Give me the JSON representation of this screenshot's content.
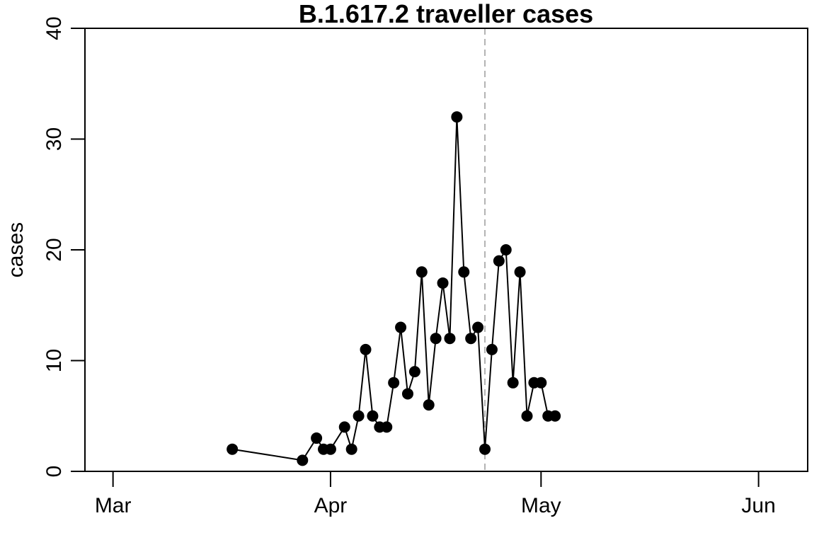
{
  "chart_data": {
    "type": "line",
    "title": "B.1.617.2 traveller cases",
    "xlabel": "",
    "ylabel": "cases",
    "x_type": "date",
    "xlim": [
      "2021-02-25",
      "2021-06-08"
    ],
    "ylim": [
      0,
      40
    ],
    "y_ticks": [
      0,
      10,
      20,
      30,
      40
    ],
    "x_ticks": [
      {
        "date": "2021-03-01",
        "label": "Mar"
      },
      {
        "date": "2021-04-01",
        "label": "Apr"
      },
      {
        "date": "2021-05-01",
        "label": "May"
      },
      {
        "date": "2021-06-01",
        "label": "Jun"
      }
    ],
    "grid": false,
    "legend": "none",
    "reference_line": {
      "date": "2021-04-23",
      "style": "dashed",
      "color": "#b3b3b3"
    },
    "colors": {
      "line": "#000000",
      "points": "#000000",
      "axes": "#000000"
    },
    "series": [
      {
        "x": [
          "2021-03-18",
          "2021-03-28",
          "2021-03-30",
          "2021-03-31",
          "2021-04-01",
          "2021-04-03",
          "2021-04-04",
          "2021-04-05",
          "2021-04-06",
          "2021-04-07",
          "2021-04-08",
          "2021-04-09",
          "2021-04-10",
          "2021-04-11",
          "2021-04-12",
          "2021-04-13",
          "2021-04-14",
          "2021-04-15",
          "2021-04-16",
          "2021-04-17",
          "2021-04-18",
          "2021-04-19",
          "2021-04-20",
          "2021-04-21",
          "2021-04-22",
          "2021-04-23",
          "2021-04-24",
          "2021-04-25",
          "2021-04-26",
          "2021-04-27",
          "2021-04-28",
          "2021-04-29",
          "2021-04-30",
          "2021-05-01",
          "2021-05-02",
          "2021-05-03"
        ],
        "values": [
          2,
          1,
          3,
          2,
          2,
          4,
          2,
          5,
          11,
          5,
          4,
          4,
          8,
          13,
          7,
          9,
          18,
          6,
          12,
          17,
          12,
          32,
          18,
          12,
          13,
          2,
          11,
          19,
          20,
          8,
          18,
          5,
          8,
          8,
          5,
          5
        ]
      }
    ]
  }
}
